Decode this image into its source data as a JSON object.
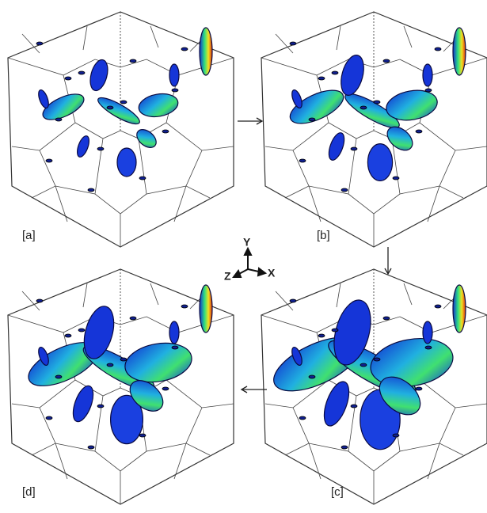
{
  "panels": [
    {
      "label": "[a]"
    },
    {
      "label": "[b]"
    },
    {
      "label": "[c]"
    },
    {
      "label": "[d]"
    }
  ],
  "axes": {
    "y": "Y",
    "z": "Z",
    "x": "X"
  }
}
